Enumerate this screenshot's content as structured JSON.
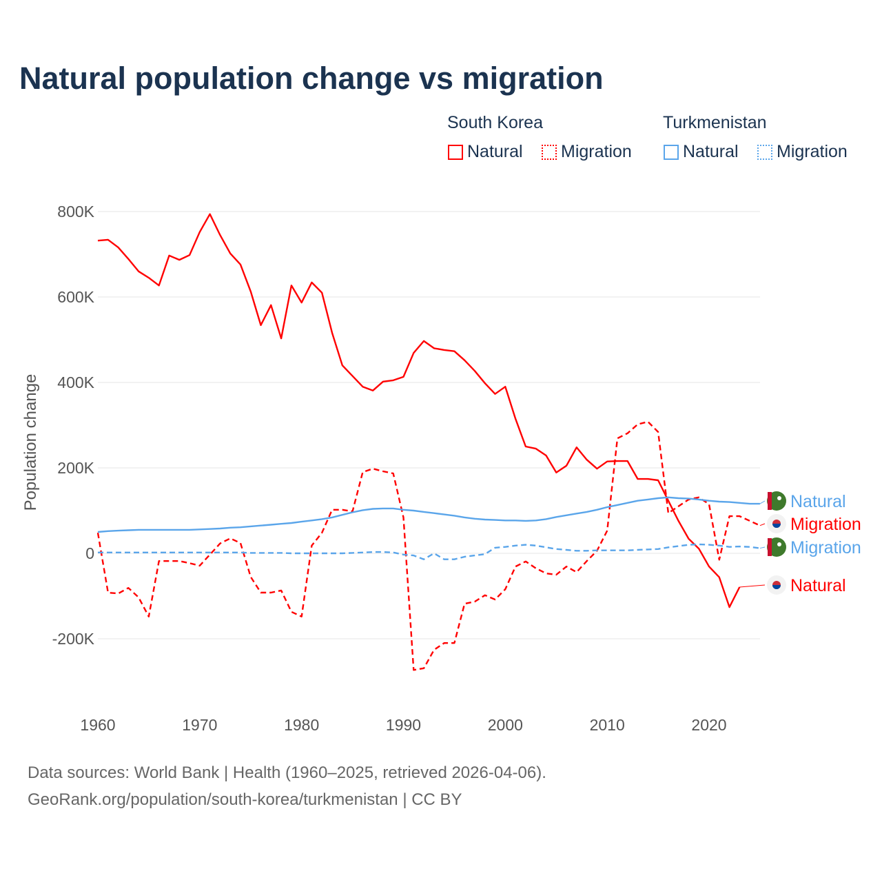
{
  "title": "Natural population change vs migration",
  "legend": {
    "groups": [
      {
        "name": "South Korea",
        "items": [
          "Natural",
          "Migration"
        ],
        "color": "#ff0000"
      },
      {
        "name": "Turkmenistan",
        "items": [
          "Natural",
          "Migration"
        ],
        "color": "#5aa5ea"
      }
    ]
  },
  "footer": {
    "line1": "Data sources: World Bank | Health (1960–2025, retrieved 2026-04-06).",
    "line2": "GeoRank.org/population/south-korea/turkmenistan | CC BY"
  },
  "chart_data": {
    "type": "line",
    "title": "Natural population change vs migration",
    "xlabel": "",
    "ylabel": "Population change",
    "xlim": [
      1960,
      2025
    ],
    "ylim": [
      -300,
      850
    ],
    "x_ticks": [
      1960,
      1970,
      1980,
      1990,
      2000,
      2010,
      2020
    ],
    "y_ticks": [
      {
        "v": -200,
        "label": "-200K"
      },
      {
        "v": 0,
        "label": "0"
      },
      {
        "v": 200,
        "label": "200K"
      },
      {
        "v": 400,
        "label": "400K"
      },
      {
        "v": 600,
        "label": "600K"
      },
      {
        "v": 800,
        "label": "800K"
      }
    ],
    "units": "thousands",
    "grid": true,
    "series": [
      {
        "name": "South Korea Natural",
        "label": "Natural",
        "flag": "south-korea",
        "color": "#ff0000",
        "dash": false,
        "start": 1960,
        "values": [
          732,
          734,
          716,
          689,
          660,
          645,
          627,
          697,
          687,
          698,
          752,
          794,
          745,
          702,
          676,
          613,
          534,
          581,
          503,
          627,
          587,
          634,
          610,
          516,
          440,
          415,
          390,
          381,
          402,
          405,
          413,
          469,
          497,
          480,
          476,
          473,
          452,
          427,
          398,
          373,
          390,
          315,
          250,
          245,
          229,
          189,
          205,
          248,
          219,
          198,
          215,
          216,
          216,
          174,
          174,
          171,
          123,
          76,
          34,
          11,
          -31,
          -56,
          -126,
          -79
        ]
      },
      {
        "name": "South Korea Migration",
        "label": "Migration",
        "flag": "south-korea",
        "color": "#ff0000",
        "dash": true,
        "start": 1960,
        "values": [
          48,
          -92,
          -94,
          -81,
          -103,
          -148,
          -18,
          -18,
          -18,
          -23,
          -29,
          -3,
          23,
          35,
          24,
          -55,
          -92,
          -92,
          -87,
          -137,
          -148,
          18,
          48,
          102,
          102,
          98,
          190,
          198,
          192,
          187,
          84,
          -273,
          -269,
          -226,
          -210,
          -210,
          -118,
          -113,
          -98,
          -108,
          -84,
          -31,
          -19,
          -35,
          -47,
          -50,
          -31,
          -44,
          -18,
          6,
          53,
          269,
          281,
          302,
          308,
          284,
          94,
          110,
          126,
          131,
          115,
          -15,
          87,
          87,
          76,
          65
        ]
      },
      {
        "name": "Turkmenistan Natural",
        "label": "Natural",
        "flag": "turkmenistan",
        "color": "#5aa5ea",
        "dash": false,
        "start": 1960,
        "values": [
          50,
          52,
          53,
          54,
          55,
          55,
          55,
          55,
          55,
          55,
          56,
          57,
          58,
          60,
          61,
          63,
          65,
          67,
          69,
          71,
          74,
          77,
          80,
          84,
          90,
          96,
          101,
          104,
          105,
          105,
          102,
          100,
          97,
          94,
          91,
          88,
          84,
          81,
          79,
          78,
          77,
          77,
          76,
          77,
          80,
          85,
          89,
          93,
          97,
          102,
          108,
          113,
          118,
          123,
          126,
          129,
          131,
          129,
          128,
          126,
          123,
          121,
          120,
          118,
          116,
          116
        ]
      },
      {
        "name": "Turkmenistan Migration",
        "label": "Migration",
        "flag": "turkmenistan",
        "color": "#5aa5ea",
        "dash": true,
        "start": 1960,
        "values": [
          2,
          2,
          2,
          2,
          2,
          2,
          2,
          2,
          2,
          2,
          2,
          2,
          2,
          2,
          2,
          1,
          1,
          1,
          1,
          0,
          0,
          0,
          0,
          0,
          0,
          1,
          2,
          3,
          3,
          2,
          -3,
          -5,
          -14,
          0,
          -14,
          -14,
          -8,
          -5,
          -2,
          13,
          15,
          18,
          20,
          18,
          14,
          10,
          8,
          6,
          6,
          7,
          7,
          7,
          7,
          8,
          9,
          10,
          14,
          17,
          20,
          21,
          20,
          18,
          15,
          16,
          15,
          12
        ]
      }
    ],
    "end_labels": [
      {
        "text": "Natural",
        "series": 2
      },
      {
        "text": "Migration",
        "series": 1
      },
      {
        "text": "Migration",
        "series": 3
      },
      {
        "text": "Natural",
        "series": 0
      }
    ]
  }
}
